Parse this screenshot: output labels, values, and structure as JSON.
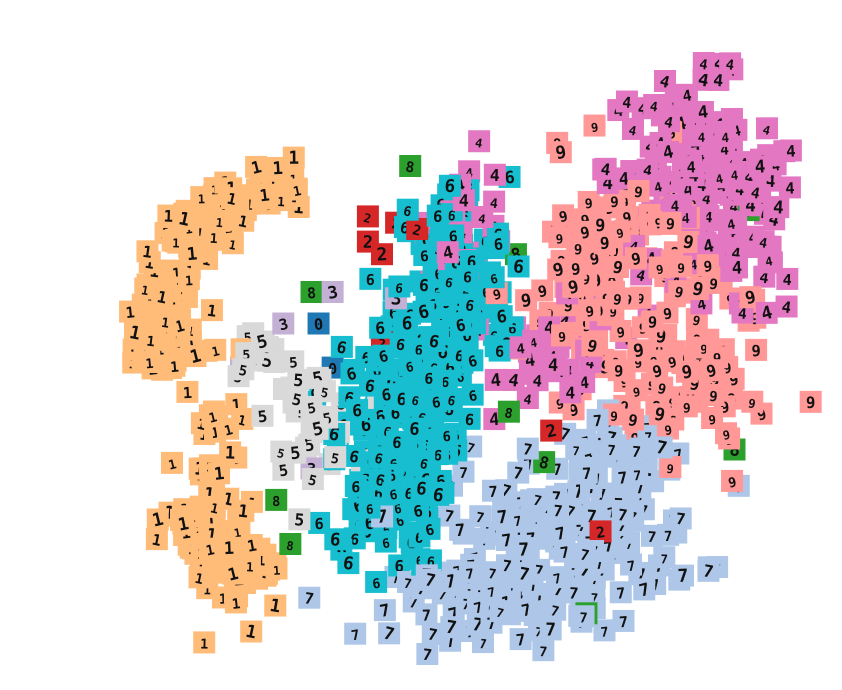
{
  "chart_data": {
    "type": "scatter",
    "title": "",
    "xlabel": "",
    "ylabel": "",
    "xlim": [
      0,
      100
    ],
    "ylim": [
      0,
      100
    ],
    "grid": false,
    "legend": "none",
    "marker": "thumbnail-image",
    "series": [
      {
        "label": "1",
        "color": "#ffbb78",
        "clusters": [
          {
            "kind": "arc",
            "cx": 30,
            "cy": 55,
            "r": 22,
            "t0": 95,
            "t1": 200,
            "thick": 3.5,
            "n": 170
          },
          {
            "kind": "arc",
            "cx": 22,
            "cy": 25,
            "r": 9,
            "t0": 170,
            "t1": 290,
            "thick": 3.5,
            "n": 90
          },
          {
            "kind": "blob",
            "x": 16,
            "y": 30,
            "sx": 2,
            "sy": 12,
            "n": 60
          }
        ]
      },
      {
        "label": "2",
        "color": "#d62728",
        "points": [
          [
            38,
            72
          ],
          [
            42,
            71
          ],
          [
            49,
            48
          ],
          [
            52,
            50
          ],
          [
            40,
            52
          ],
          [
            38,
            68
          ],
          [
            64,
            38
          ],
          [
            71,
            22
          ],
          [
            40,
            66
          ],
          [
            45,
            70
          ]
        ]
      },
      {
        "label": "3",
        "color": "#c5b0d5",
        "points": [
          [
            33,
            60
          ],
          [
            26,
            55
          ],
          [
            42,
            59
          ],
          [
            30,
            32
          ],
          [
            20,
            48
          ],
          [
            28,
            43
          ]
        ]
      },
      {
        "label": "4",
        "color": "#e377c2",
        "clusters": [
          {
            "kind": "blob",
            "x": 84,
            "y": 80,
            "sx": 6,
            "sy": 7,
            "n": 110
          },
          {
            "kind": "blob",
            "x": 90,
            "y": 70,
            "sx": 5,
            "sy": 8,
            "n": 60
          },
          {
            "kind": "blob",
            "x": 65,
            "y": 50,
            "sx": 4,
            "sy": 4,
            "n": 45
          },
          {
            "kind": "blob",
            "x": 52,
            "y": 72,
            "sx": 3,
            "sy": 5,
            "n": 30
          }
        ]
      },
      {
        "label": "5",
        "color": "#d9d9d9",
        "clusters": [
          {
            "kind": "blob",
            "x": 30,
            "y": 40,
            "sx": 3,
            "sy": 4,
            "n": 40
          },
          {
            "kind": "blob",
            "x": 22,
            "y": 50,
            "sx": 2,
            "sy": 2,
            "n": 15
          }
        ]
      },
      {
        "label": "6",
        "color": "#17becf",
        "clusters": [
          {
            "kind": "blob",
            "x": 50,
            "y": 60,
            "sx": 4,
            "sy": 9,
            "n": 140
          },
          {
            "kind": "blob",
            "x": 41,
            "y": 34,
            "sx": 4,
            "sy": 9,
            "n": 140
          },
          {
            "kind": "blob",
            "x": 46,
            "y": 47,
            "sx": 3,
            "sy": 5,
            "n": 50
          }
        ]
      },
      {
        "label": "7",
        "color": "#aec7e8",
        "clusters": [
          {
            "kind": "blob",
            "x": 67,
            "y": 22,
            "sx": 9,
            "sy": 6,
            "n": 150
          },
          {
            "kind": "blob",
            "x": 56,
            "y": 11,
            "sx": 7,
            "sy": 3,
            "n": 70
          },
          {
            "kind": "blob",
            "x": 73,
            "y": 34,
            "sx": 4,
            "sy": 3,
            "n": 30
          }
        ]
      },
      {
        "label": "8",
        "color": "#2ca02c",
        "points": [
          [
            58,
            41
          ],
          [
            90,
            35
          ],
          [
            27,
            20
          ],
          [
            25,
            27
          ],
          [
            44,
            80
          ],
          [
            69,
            9
          ],
          [
            92,
            73
          ],
          [
            30,
            60
          ],
          [
            59,
            66
          ],
          [
            63,
            33
          ]
        ]
      },
      {
        "label": "9",
        "color": "#ff9896",
        "clusters": [
          {
            "kind": "blob",
            "x": 73,
            "y": 62,
            "sx": 7,
            "sy": 9,
            "n": 130
          },
          {
            "kind": "blob",
            "x": 83,
            "y": 45,
            "sx": 6,
            "sy": 6,
            "n": 70
          }
        ]
      },
      {
        "label": "0",
        "color": "#1f77b4",
        "points": [
          [
            33,
            48
          ],
          [
            31,
            55
          ]
        ]
      }
    ]
  }
}
